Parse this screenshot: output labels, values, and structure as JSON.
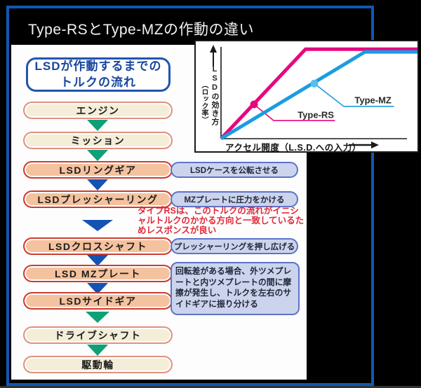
{
  "page": {
    "title": "Type-RSとType-MZの作動の違い"
  },
  "flow_panel": {
    "heading": {
      "line1": "LSDが作動するまでの",
      "line2": "トルクの流れ"
    },
    "steps": [
      {
        "label": "エンジン"
      },
      {
        "label": "ミッション"
      },
      {
        "label": "LSDリングギア"
      },
      {
        "label": "LSDプレッシャーリング"
      },
      {
        "label": "LSDクロスシャフト"
      },
      {
        "label": "LSD MZプレート"
      },
      {
        "label": "LSDサイドギア"
      },
      {
        "label": "ドライブシャフト"
      },
      {
        "label": "駆動輪"
      }
    ],
    "side_notes": [
      {
        "text": "LSDケースを公転させる"
      },
      {
        "text": "MZプレートに圧力をかける"
      },
      {
        "text": "プレッシャーリングを押し広げる"
      },
      {
        "text": "回転差がある場合、外ツメプレートと内ツメプレートの間に摩擦が発生し、トルクを左右のサイドギアに振り分ける"
      }
    ],
    "rs_annotation": "タイプRSは、このトルクの流れがイニシャルトルクのかかる方向と一致しているためレスポンスが良い",
    "colors": {
      "cream_fill": "#f4eed9",
      "cream_border": "#e2907e",
      "salmon_fill": "#f4c29e",
      "salmon_border": "#cf3b2e",
      "arrow_green": "#0fa077",
      "arrow_blue": "#1253b4",
      "note_fill": "#ccd3ec",
      "note_border": "#5c74c8",
      "annotation_red": "#e02838",
      "frame_blue": "#1157b4"
    }
  },
  "chart_data": {
    "type": "line",
    "title": "",
    "xlabel": "アクセル開度（L.S.D.への入力）",
    "ylabel_main": "LSDの効き方",
    "ylabel_sub": "（ロック率）",
    "axis_ranges": {
      "x_pct": [
        0,
        100
      ],
      "y_pct": [
        0,
        100
      ]
    },
    "grid": false,
    "legend_position": "inline-callouts",
    "series": [
      {
        "name": "Type-RS",
        "color": "#e60880",
        "marker_color": "#e60880",
        "points_pct": [
          [
            0,
            0
          ],
          [
            43,
            99
          ],
          [
            100,
            99
          ]
        ],
        "marker_pct": [
          16.8,
          38
        ],
        "callout_elbow_pct": [
          26.8,
          20
        ],
        "callout_end_pct": [
          58,
          20
        ],
        "label_pct": [
          39,
          23
        ]
      },
      {
        "name": "Type-MZ",
        "color": "#1b9ce0",
        "marker_color": "#55c0ee",
        "points_pct": [
          [
            0,
            0
          ],
          [
            73.2,
            96
          ],
          [
            100,
            96
          ]
        ],
        "marker_pct": [
          47.5,
          61
        ],
        "callout_elbow_pct": [
          62.5,
          35.7
        ],
        "callout_end_pct": [
          88,
          35.7
        ],
        "label_pct": [
          68,
          39
        ]
      }
    ]
  }
}
